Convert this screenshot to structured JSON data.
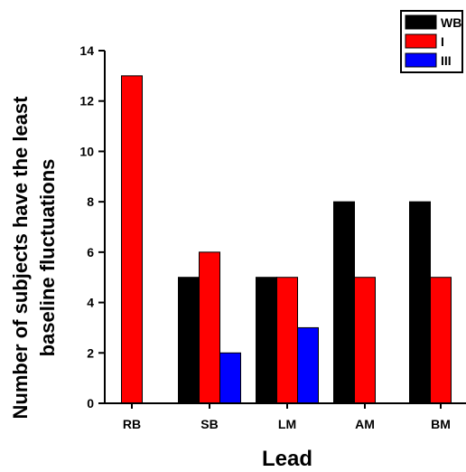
{
  "chart_data": {
    "type": "bar",
    "categories": [
      "RB",
      "SB",
      "LM",
      "AM",
      "BM"
    ],
    "series": [
      {
        "name": "WB",
        "values": [
          0,
          5,
          5,
          8,
          8
        ],
        "color": "#000000"
      },
      {
        "name": "I",
        "values": [
          13,
          6,
          5,
          5,
          5
        ],
        "color": "#ff0000"
      },
      {
        "name": "III",
        "values": [
          0,
          2,
          3,
          0,
          0
        ],
        "color": "#0000ff"
      }
    ],
    "xlabel": "Lead",
    "ylabel": "Number of subjects have the least baseline fluctuations",
    "ylabel_lines": [
      "Number of subjects have the least",
      "baseline fluctuations"
    ],
    "ylim": [
      0,
      14
    ],
    "yticks": [
      0,
      2,
      4,
      6,
      8,
      10,
      12,
      14
    ],
    "grid": false,
    "legend_position": "top-right"
  }
}
